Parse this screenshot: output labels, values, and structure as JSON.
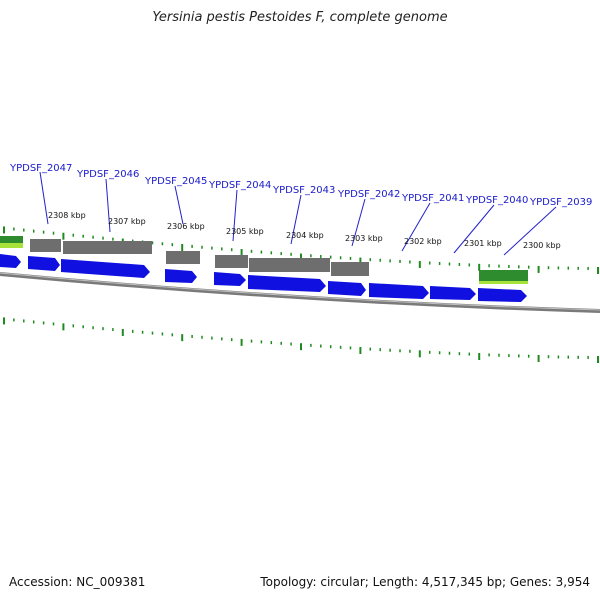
{
  "title": "Yersinia pestis Pestoides F, complete genome",
  "accession_text": "Accession: NC_009381",
  "summary_text": "Topology: circular; Length: 4,517,345 bp; Genes: 3,954",
  "colors": {
    "cds": "#1010e0",
    "gene": "#6e6e6e",
    "other_feature": "#2e8b2e",
    "highlight": "#a6e23a",
    "tick": "#1f8a1f",
    "backbone": "#808080",
    "label": "#1a1acc"
  },
  "gene_labels": [
    "YPDSF_2047",
    "YPDSF_2046",
    "YPDSF_2045",
    "YPDSF_2044",
    "YPDSF_2043",
    "YPDSF_2042",
    "YPDSF_2041",
    "YPDSF_2040",
    "YPDSF_2039"
  ],
  "kbp_labels": [
    "2308 kbp",
    "2307 kbp",
    "2306 kbp",
    "2305 kbp",
    "2304 kbp",
    "2303 kbp",
    "2302 kbp",
    "2301 kbp",
    "2300 kbp"
  ]
}
